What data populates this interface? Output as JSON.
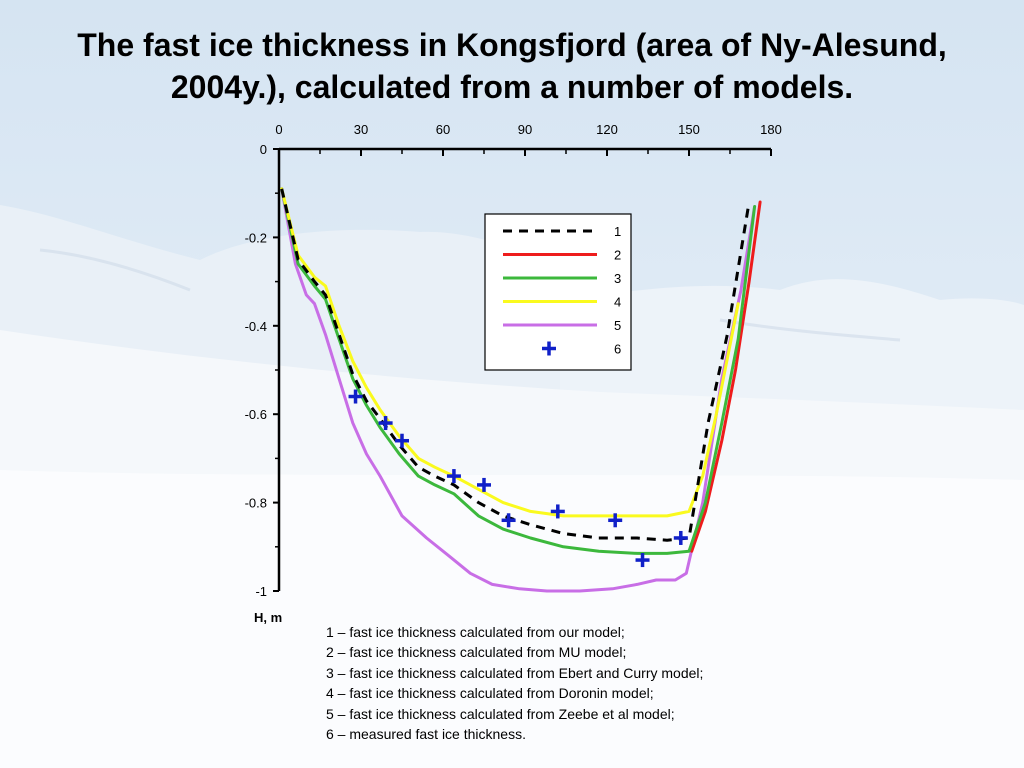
{
  "slide": {
    "title": "The fast ice thickness in Kongsfjord (area of Ny-Alesund, 2004y.), calculated from a number of models."
  },
  "chart_data": {
    "type": "line",
    "title": "The fast ice thickness in Kongsfjord (area of Ny-Alesund, 2004y.), calculated from a number of models.",
    "xlabel": "",
    "ylabel": "H, m",
    "xlim": [
      0,
      180
    ],
    "ylim": [
      -1,
      0
    ],
    "x_ticks": [
      "0",
      "30",
      "60",
      "90",
      "120",
      "150",
      "180"
    ],
    "y_ticks": [
      "0",
      "-0.2",
      "-0.4",
      "-0.6",
      "-0.8",
      "-1"
    ],
    "x_axis_position": "top",
    "grid": false,
    "legend_position": "upper-middle-right",
    "series": [
      {
        "name": "1",
        "style": "dashed",
        "color": "#000000",
        "x": [
          1,
          7,
          13,
          17,
          22,
          27,
          32,
          37,
          44,
          51,
          57,
          64,
          73,
          82,
          92,
          104,
          117,
          131,
          142,
          150,
          157,
          164,
          172
        ],
        "y": [
          -0.09,
          -0.25,
          -0.3,
          -0.33,
          -0.42,
          -0.51,
          -0.57,
          -0.61,
          -0.67,
          -0.72,
          -0.74,
          -0.76,
          -0.8,
          -0.83,
          -0.85,
          -0.87,
          -0.88,
          -0.88,
          -0.885,
          -0.88,
          -0.62,
          -0.42,
          -0.12
        ]
      },
      {
        "name": "2",
        "style": "solid",
        "color": "#ee1c1c",
        "x": [
          151,
          156,
          162,
          167,
          172,
          176
        ],
        "y": [
          -0.91,
          -0.82,
          -0.66,
          -0.5,
          -0.3,
          -0.12
        ]
      },
      {
        "name": "3",
        "style": "solid",
        "color": "#3cb83c",
        "x": [
          1,
          7,
          13,
          17,
          22,
          27,
          32,
          37,
          44,
          51,
          57,
          64,
          73,
          82,
          92,
          104,
          117,
          131,
          142,
          150,
          156,
          162,
          168,
          174
        ],
        "y": [
          -0.09,
          -0.26,
          -0.31,
          -0.34,
          -0.43,
          -0.52,
          -0.58,
          -0.63,
          -0.69,
          -0.74,
          -0.76,
          -0.78,
          -0.83,
          -0.86,
          -0.88,
          -0.9,
          -0.91,
          -0.915,
          -0.915,
          -0.91,
          -0.8,
          -0.62,
          -0.43,
          -0.13
        ]
      },
      {
        "name": "4",
        "style": "solid",
        "color": "#fafa1e",
        "x": [
          1,
          7,
          13,
          17,
          22,
          27,
          32,
          37,
          44,
          51,
          57,
          64,
          73,
          82,
          92,
          104,
          117,
          131,
          142,
          150,
          155,
          160,
          168
        ],
        "y": [
          -0.09,
          -0.24,
          -0.29,
          -0.31,
          -0.4,
          -0.48,
          -0.54,
          -0.59,
          -0.65,
          -0.7,
          -0.72,
          -0.74,
          -0.77,
          -0.8,
          -0.82,
          -0.83,
          -0.83,
          -0.83,
          -0.83,
          -0.82,
          -0.74,
          -0.6,
          -0.35
        ]
      },
      {
        "name": "5",
        "style": "solid",
        "color": "#c86ee6",
        "x": [
          1,
          6,
          10,
          13,
          17,
          22,
          27,
          32,
          37,
          45,
          54,
          62,
          70,
          78,
          88,
          98,
          110,
          122,
          131,
          138,
          145,
          149,
          155,
          162,
          169,
          174
        ],
        "y": [
          -0.09,
          -0.26,
          -0.33,
          -0.35,
          -0.42,
          -0.52,
          -0.62,
          -0.69,
          -0.74,
          -0.83,
          -0.88,
          -0.92,
          -0.96,
          -0.985,
          -0.995,
          -1.0,
          -1.0,
          -0.995,
          -0.985,
          -0.975,
          -0.975,
          -0.96,
          -0.8,
          -0.52,
          -0.32,
          -0.13
        ]
      },
      {
        "name": "6",
        "style": "markers",
        "color": "#1020c8",
        "x": [
          28,
          39,
          45,
          64,
          75,
          84,
          102,
          123,
          133,
          147
        ],
        "y": [
          -0.56,
          -0.62,
          -0.66,
          -0.74,
          -0.76,
          -0.84,
          -0.82,
          -0.84,
          -0.93,
          -0.88
        ]
      }
    ],
    "legend": {
      "entries": [
        {
          "label": "1",
          "style": "dashed",
          "color": "#000000"
        },
        {
          "label": "2",
          "style": "solid",
          "color": "#ee1c1c"
        },
        {
          "label": "3",
          "style": "solid",
          "color": "#3cb83c"
        },
        {
          "label": "4",
          "style": "solid",
          "color": "#fafa1e"
        },
        {
          "label": "5",
          "style": "solid",
          "color": "#c86ee6"
        },
        {
          "label": "6",
          "style": "markers",
          "color": "#1020c8"
        }
      ]
    },
    "annotations": [
      "1 – fast ice thickness calculated from our model;",
      "2 – fast ice thickness calculated from MU model;",
      "3 – fast ice thickness calculated from Ebert and Curry model;",
      "4 – fast ice thickness calculated from Doronin model;",
      "5 – fast ice thickness calculated from Zeebe et al model;",
      "6 – measured fast ice thickness."
    ]
  }
}
